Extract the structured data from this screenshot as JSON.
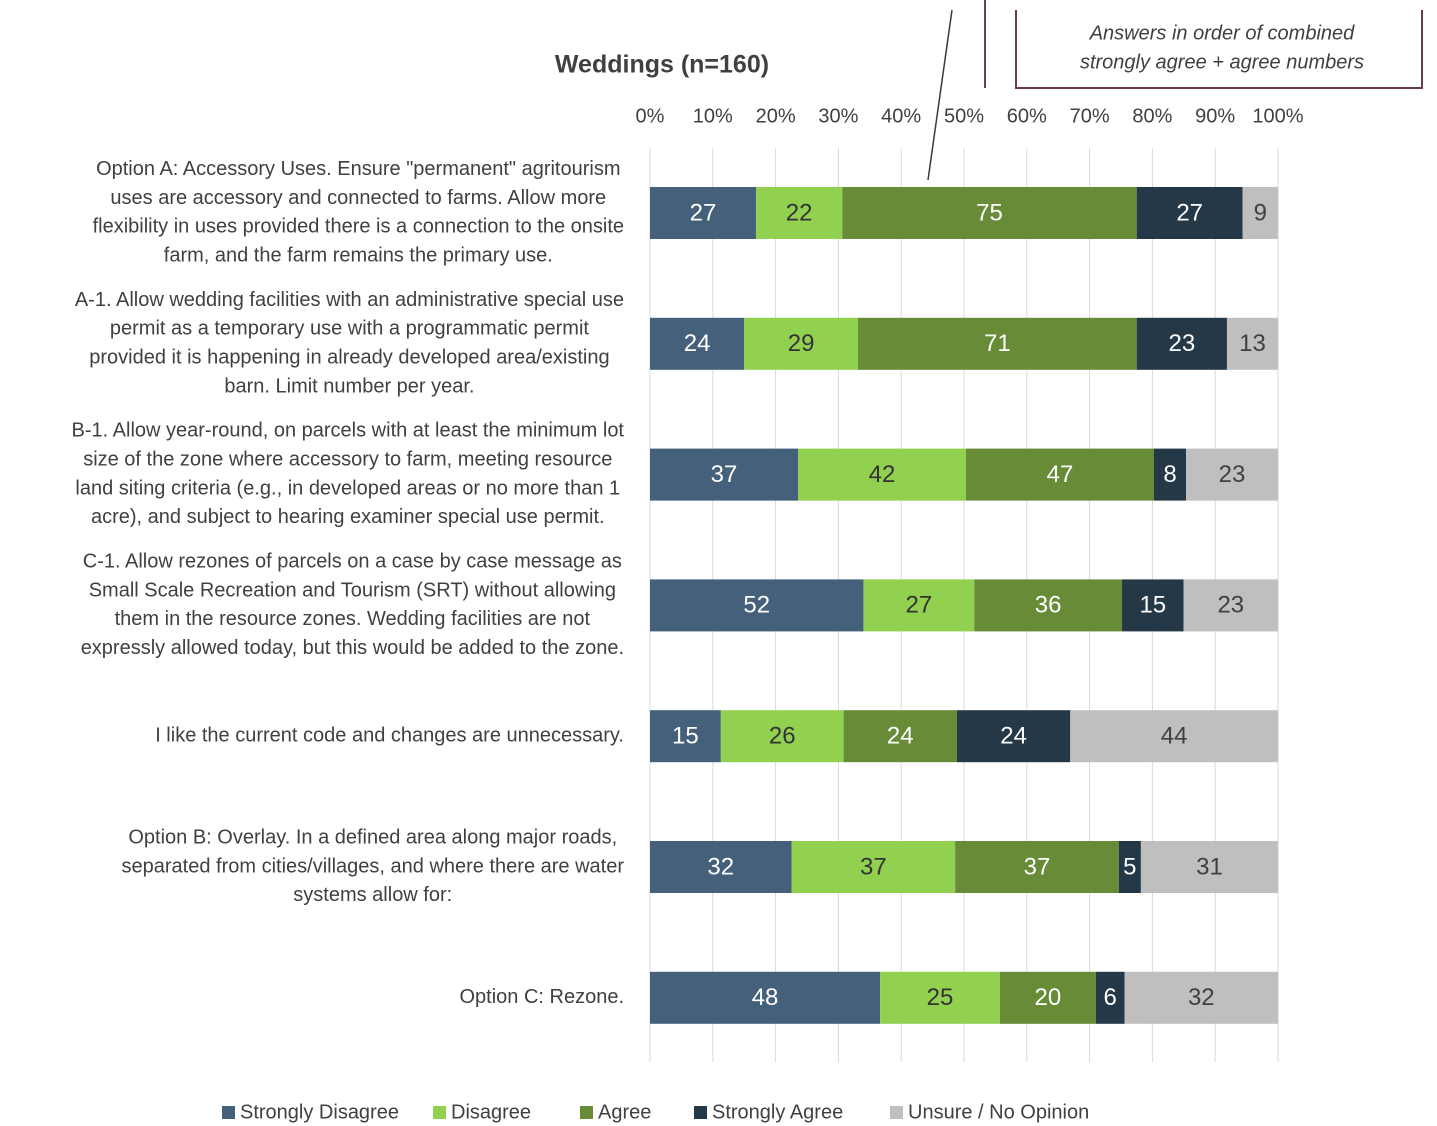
{
  "chart_data": {
    "type": "stacked_percent_bar",
    "orientation": "horizontal",
    "title": "Weddings (n=160)",
    "annotation": [
      "Answers in order of combined",
      "strongly agree + agree numbers"
    ],
    "categories": [
      [
        "Option A: Accessory Uses. Ensure \"permanent\" agritourism",
        "uses are accessory and connected to farms. Allow more",
        "flexibility in uses provided there is a connection to the onsite",
        "farm, and the farm remains the primary use."
      ],
      [
        "A-1. Allow wedding facilities with an administrative special use",
        "permit as a temporary use with a programmatic permit",
        "provided it is happening in already developed area/existing",
        "barn. Limit number per year."
      ],
      [
        "B-1. Allow year-round, on parcels with at least the minimum lot",
        "size of the zone where accessory to farm, meeting resource",
        "land siting criteria (e.g., in developed areas or no more than 1",
        "acre), and subject to hearing examiner special use permit."
      ],
      [
        "C-1. Allow rezones of parcels on a case by case message as",
        "Small Scale Recreation and Tourism (SRT) without allowing",
        "them in the resource zones. Wedding facilities are not",
        "expressly allowed today, but this would be added to the zone."
      ],
      [
        "I like the current code and changes are unnecessary."
      ],
      [
        "Option B: Overlay. In a defined area along major roads,",
        "separated from cities/villages, and where there are water",
        "systems allow for:"
      ],
      [
        "Option C: Rezone."
      ]
    ],
    "series": [
      {
        "name": "Strongly Disagree",
        "color": "#44607a",
        "label_color": "#ffffff",
        "values": [
          27,
          24,
          37,
          52,
          15,
          32,
          48
        ]
      },
      {
        "name": "Disagree",
        "color": "#92d050",
        "label_color": "#333333",
        "values": [
          22,
          29,
          42,
          27,
          26,
          37,
          25
        ]
      },
      {
        "name": "Agree",
        "color": "#678b37",
        "label_color": "#ffffff",
        "values": [
          75,
          71,
          47,
          36,
          24,
          37,
          20
        ]
      },
      {
        "name": "Strongly Agree",
        "color": "#253847",
        "label_color": "#ffffff",
        "values": [
          27,
          23,
          8,
          15,
          24,
          5,
          6
        ]
      },
      {
        "name": "Unsure / No Opinion",
        "color": "#bfbfbf",
        "label_color": "#404040",
        "values": [
          9,
          13,
          23,
          23,
          44,
          31,
          32
        ]
      }
    ],
    "xlim": [
      0,
      100
    ],
    "xticks": [
      {
        "value": 0,
        "label": "0%"
      },
      {
        "value": 10,
        "label": "10%"
      },
      {
        "value": 20,
        "label": "20%"
      },
      {
        "value": 30,
        "label": "30%"
      },
      {
        "value": 40,
        "label": "40%"
      },
      {
        "value": 50,
        "label": "50%"
      },
      {
        "value": 60,
        "label": "60%"
      },
      {
        "value": 70,
        "label": "70%"
      },
      {
        "value": 80,
        "label": "80%"
      },
      {
        "value": 90,
        "label": "90%"
      },
      {
        "value": 100,
        "label": "100%"
      }
    ],
    "grid": true,
    "legend": "bottom"
  }
}
